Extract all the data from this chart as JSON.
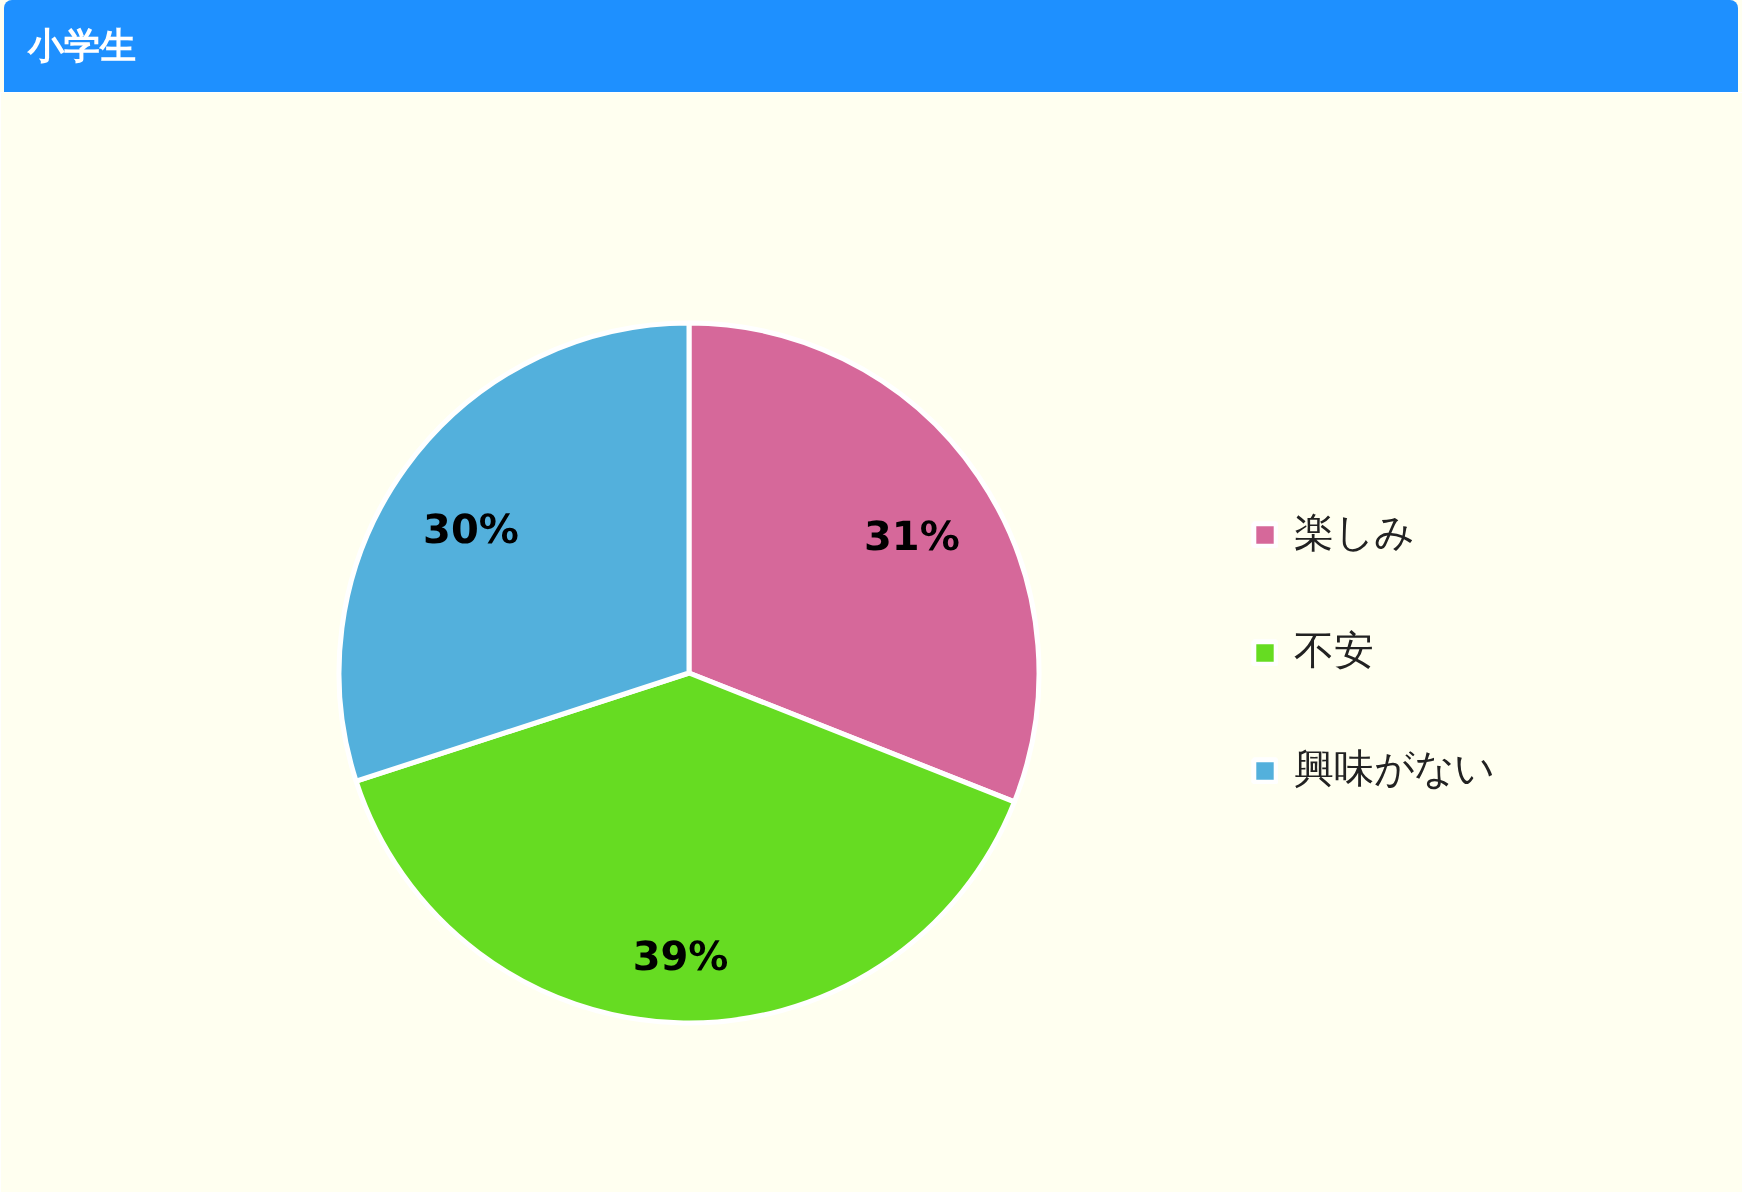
{
  "chart_data": {
    "type": "pie",
    "title": "小学生",
    "categories": [
      "楽しみ",
      "不安",
      "興味がない"
    ],
    "values": [
      31,
      39,
      30
    ],
    "colors": [
      "#d6689a",
      "#66dc22",
      "#53b0dc"
    ],
    "value_labels": [
      "31%",
      "39%",
      "30%"
    ],
    "legend": "right"
  }
}
